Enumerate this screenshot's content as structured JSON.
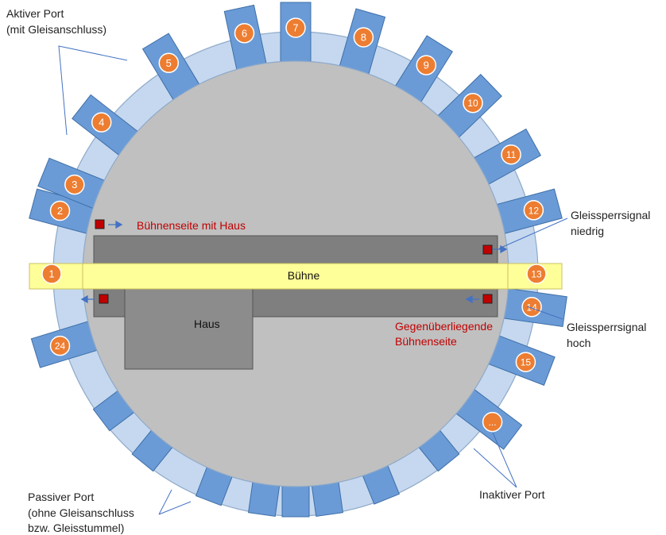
{
  "labels": {
    "active_port_1": "Aktiver Port",
    "active_port_2": "(mit Gleisanschluss)",
    "passive_port_1": "Passiver Port",
    "passive_port_2": "(ohne Gleisanschluss",
    "passive_port_3": "bzw. Gleisstummel)",
    "inactive_port": "Inaktiver Port",
    "signal_low_1": "Gleissperrsignal",
    "signal_low_2": "niedrig",
    "signal_high_1": "Gleissperrsignal",
    "signal_high_2": "hoch",
    "stage_side_house": "Bühnenseite mit Haus",
    "opposite_1": "Gegenüberliegende",
    "opposite_2": "Bühnenseite",
    "bridge": "Bühne",
    "house": "Haus"
  },
  "ports": [
    {
      "label": "1"
    },
    {
      "label": "2"
    },
    {
      "label": "3"
    },
    {
      "label": "4"
    },
    {
      "label": "5"
    },
    {
      "label": "6"
    },
    {
      "label": "7"
    },
    {
      "label": "8"
    },
    {
      "label": "9"
    },
    {
      "label": "10"
    },
    {
      "label": "11"
    },
    {
      "label": "12"
    },
    {
      "label": "13"
    },
    {
      "label": "14"
    },
    {
      "label": "15"
    },
    {
      "label": "..."
    },
    {
      "label": "24"
    }
  ],
  "colors": {
    "ring": "#c5d8ef",
    "disk": "#c0c0c0",
    "deck": "#7f7f7f",
    "house": "#8c8c8c",
    "bridge": "#ffff99",
    "port": "#6a9bd6",
    "badge": "#ed7d31",
    "signal": "#c00000",
    "callout": "#4472c4"
  }
}
